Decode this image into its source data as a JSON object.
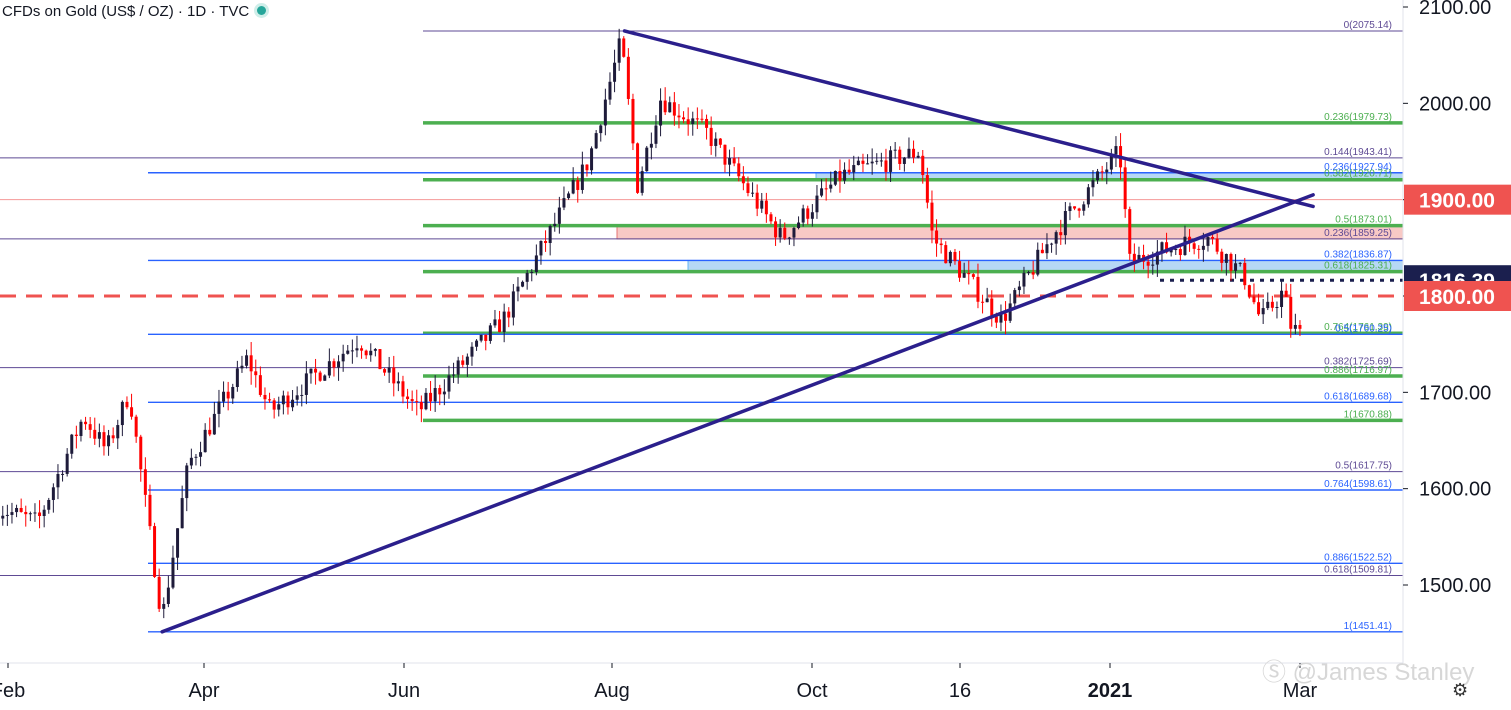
{
  "header": {
    "title": "CFDs on Gold (US$ / OZ) · 1D · TVC"
  },
  "watermark": "Ⓢ @James Stanley",
  "colors": {
    "up": "#1e1b3a",
    "down": "#ff0000",
    "trend": "#2b1f8c",
    "fibA": "#2962ff",
    "fibB": "#4caf50",
    "fibC": "#5e4a94",
    "zoneRed": "#f5b7b1",
    "zoneBlue": "#9ecbf2"
  },
  "chart_data": {
    "type": "candlestick",
    "title": "CFDs on Gold (US$ / OZ) · 1D · TVC",
    "x_ticks": [
      "Feb",
      "Apr",
      "Jun",
      "Aug",
      "Oct",
      "16",
      "2021",
      "Mar"
    ],
    "y_ticks": [
      "2100.00",
      "2000.00",
      "1900.00",
      "1800.00",
      "1700.00",
      "1600.00",
      "1500.00"
    ],
    "ylim": [
      1430,
      2110
    ],
    "price_labels": [
      {
        "text": "1900.00",
        "value": 1900,
        "color": "#ef5350"
      },
      {
        "text": "1816.39",
        "value": 1816.39,
        "color": "#1b1f4e"
      },
      {
        "text": "1800.00",
        "value": 1800,
        "color": "#ef5350"
      }
    ],
    "fib_levels": [
      {
        "label": "0(2075.14)",
        "value": 2075.14,
        "set": "C"
      },
      {
        "label": "0.236(1979.73)",
        "value": 1979.73,
        "set": "B"
      },
      {
        "label": "0.144(1943.41)",
        "value": 1943.41,
        "set": "C"
      },
      {
        "label": "0.236(1927.94)",
        "value": 1927.94,
        "set": "A"
      },
      {
        "label": "0.382(1920.71)",
        "value": 1920.71,
        "set": "B"
      },
      {
        "label": "0.5(1873.01)",
        "value": 1873.01,
        "set": "B"
      },
      {
        "label": "0.236(1859.25)",
        "value": 1859.25,
        "set": "C"
      },
      {
        "label": "0.382(1836.87)",
        "value": 1836.87,
        "set": "A"
      },
      {
        "label": "0.618(1825.31)",
        "value": 1825.31,
        "set": "B"
      },
      {
        "label": "0.764(1761.39)",
        "value": 1761.39,
        "set": "B"
      },
      {
        "label": "0.5(1760.25)",
        "value": 1760.25,
        "set": "A"
      },
      {
        "label": "0.382(1725.69)",
        "value": 1725.69,
        "set": "C"
      },
      {
        "label": "0.886(1716.97)",
        "value": 1716.97,
        "set": "B"
      },
      {
        "label": "0.618(1689.68)",
        "value": 1689.68,
        "set": "A"
      },
      {
        "label": "1(1670.88)",
        "value": 1670.88,
        "set": "B"
      },
      {
        "label": "0.5(1617.75)",
        "value": 1617.75,
        "set": "C"
      },
      {
        "label": "0.764(1598.61)",
        "value": 1598.61,
        "set": "A"
      },
      {
        "label": "0.886(1522.52)",
        "value": 1522.52,
        "set": "A"
      },
      {
        "label": "0.618(1509.81)",
        "value": 1509.81,
        "set": "C"
      },
      {
        "label": "1(1451.41)",
        "value": 1451.41,
        "set": "A"
      }
    ],
    "horizontal_lines": [
      {
        "value": 1900,
        "style": "thin",
        "color": "#ef5350"
      },
      {
        "value": 1800,
        "style": "dashed",
        "color": "#ef5350"
      },
      {
        "value": 1816.39,
        "style": "dotted",
        "color": "#1b1f4e"
      }
    ],
    "zones": [
      {
        "from": 1859.25,
        "to": 1873.01,
        "color": "#f5b7b1"
      },
      {
        "from": 1920.71,
        "to": 1927.94,
        "color": "#9ecbf2"
      },
      {
        "from": 1825.31,
        "to": 1836.87,
        "color": "#9ecbf2"
      }
    ],
    "trendlines": [
      {
        "from": {
          "date": "2020-03-19",
          "price": 1451.41
        },
        "to": {
          "date": "2021-03-05",
          "price": 1905
        }
      },
      {
        "from": {
          "date": "2020-08-07",
          "price": 2075.14
        },
        "to": {
          "date": "2021-03-05",
          "price": 1893
        }
      }
    ],
    "price_path": [
      [
        "2020-01-29",
        1580
      ],
      [
        "2020-02-10",
        1565
      ],
      [
        "2020-02-24",
        1675
      ],
      [
        "2020-03-02",
        1640
      ],
      [
        "2020-03-09",
        1700
      ],
      [
        "2020-03-19",
        1465
      ],
      [
        "2020-03-27",
        1625
      ],
      [
        "2020-04-14",
        1735
      ],
      [
        "2020-04-21",
        1680
      ],
      [
        "2020-05-18",
        1755
      ],
      [
        "2020-06-05",
        1680
      ],
      [
        "2020-07-01",
        1775
      ],
      [
        "2020-07-27",
        1940
      ],
      [
        "2020-08-06",
        2065
      ],
      [
        "2020-08-11",
        1915
      ],
      [
        "2020-08-18",
        2005
      ],
      [
        "2020-09-01",
        1970
      ],
      [
        "2020-09-24",
        1860
      ],
      [
        "2020-10-12",
        1925
      ],
      [
        "2020-11-05",
        1950
      ],
      [
        "2020-11-09",
        1860
      ],
      [
        "2020-11-30",
        1775
      ],
      [
        "2020-12-16",
        1865
      ],
      [
        "2021-01-05",
        1950
      ],
      [
        "2021-01-08",
        1835
      ],
      [
        "2021-01-25",
        1855
      ],
      [
        "2021-02-01",
        1860
      ],
      [
        "2021-02-08",
        1835
      ],
      [
        "2021-02-12",
        1820
      ],
      [
        "2021-02-17",
        1775
      ],
      [
        "2021-02-24",
        1805
      ],
      [
        "2021-02-26",
        1770
      ],
      [
        "2021-03-01",
        1760
      ]
    ]
  }
}
